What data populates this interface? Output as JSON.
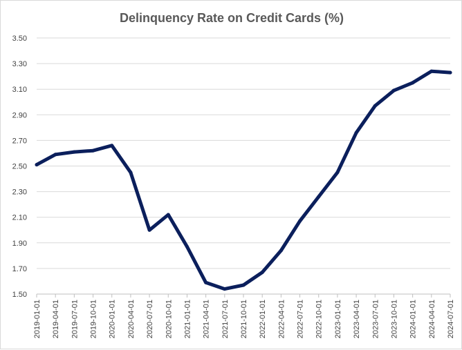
{
  "chart_data": {
    "type": "line",
    "title": "Delinquency Rate on Credit Cards (%)",
    "xlabel": "",
    "ylabel": "",
    "ylim": [
      1.5,
      3.5
    ],
    "yticks": [
      "1.50",
      "1.70",
      "1.90",
      "2.10",
      "2.30",
      "2.50",
      "2.70",
      "2.90",
      "3.10",
      "3.30",
      "3.50"
    ],
    "grid": true,
    "legend": "none",
    "color": "#0b1f5c",
    "x": [
      "2019-01-01",
      "2019-04-01",
      "2019-07-01",
      "2019-10-01",
      "2020-01-01",
      "2020-04-01",
      "2020-07-01",
      "2020-10-01",
      "2021-01-01",
      "2021-04-01",
      "2021-07-01",
      "2021-10-01",
      "2022-01-01",
      "2022-04-01",
      "2022-07-01",
      "2022-10-01",
      "2023-01-01",
      "2023-04-01",
      "2023-07-01",
      "2023-10-01",
      "2024-01-01",
      "2024-04-01",
      "2024-07-01"
    ],
    "values": [
      2.51,
      2.59,
      2.61,
      2.62,
      2.66,
      2.45,
      2.0,
      2.12,
      1.87,
      1.59,
      1.54,
      1.57,
      1.67,
      1.84,
      2.07,
      2.26,
      2.45,
      2.76,
      2.97,
      3.09,
      3.15,
      3.24,
      3.23
    ]
  }
}
